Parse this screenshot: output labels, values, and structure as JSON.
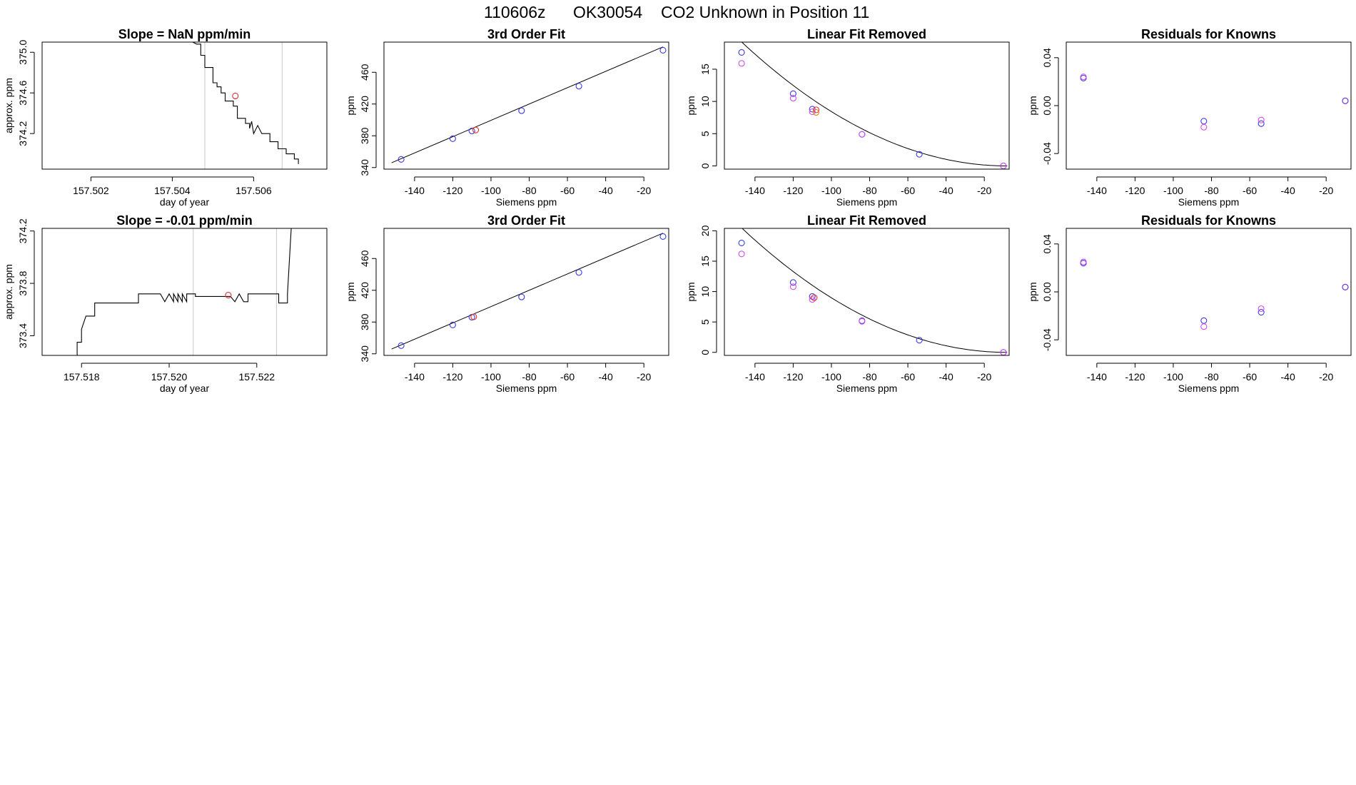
{
  "header": {
    "date": "110606z",
    "instrument": "OK30054",
    "description": "CO2 Unknown in Position  11"
  },
  "colors": {
    "blue": "#3a3ae0",
    "magenta": "#d54cf0",
    "red": "#e23030",
    "orange": "#e08a1e",
    "purple": "#7a3ae0",
    "ref_line": "#c8c8c8"
  },
  "chart_data": [
    {
      "id": "r0c0",
      "type": "line",
      "title": "Slope =  NaN  ppm/min",
      "xlabel": "day of year",
      "ylabel": "approx. ppm",
      "xlim": [
        157.5008,
        157.5078
      ],
      "ylim": [
        373.85,
        375.1
      ],
      "xticks": [
        157.502,
        157.504,
        157.506
      ],
      "xtick_labels": [
        "157.502",
        "157.504",
        "157.506"
      ],
      "yticks": [
        374.2,
        374.6,
        375.0
      ],
      "ytick_labels": [
        "374.2",
        "374.6",
        "375.0"
      ],
      "vlines": [
        157.5048,
        157.5067
      ],
      "trace": [
        [
          157.5045,
          375.1
        ],
        [
          157.5046,
          375.08
        ],
        [
          157.5047,
          375.08
        ],
        [
          157.5047,
          374.97
        ],
        [
          157.5048,
          374.97
        ],
        [
          157.5048,
          374.85
        ],
        [
          157.505,
          374.85
        ],
        [
          157.505,
          374.7
        ],
        [
          157.5051,
          374.7
        ],
        [
          157.5051,
          374.66
        ],
        [
          157.5052,
          374.66
        ],
        [
          157.5052,
          374.6
        ],
        [
          157.5053,
          374.6
        ],
        [
          157.5053,
          374.52
        ],
        [
          157.5055,
          374.52
        ],
        [
          157.5055,
          374.47
        ],
        [
          157.5056,
          374.47
        ],
        [
          157.5056,
          374.35
        ],
        [
          157.5058,
          374.35
        ],
        [
          157.5058,
          374.3
        ],
        [
          157.5059,
          374.3
        ],
        [
          157.5059,
          374.25
        ],
        [
          157.50595,
          374.32
        ],
        [
          157.506,
          374.2
        ],
        [
          157.5061,
          374.28
        ],
        [
          157.5062,
          374.2
        ],
        [
          157.5062,
          374.2
        ],
        [
          157.5064,
          374.2
        ],
        [
          157.5064,
          374.12
        ],
        [
          157.5066,
          374.12
        ],
        [
          157.5066,
          374.05
        ],
        [
          157.5068,
          374.05
        ],
        [
          157.5068,
          374.0
        ],
        [
          157.507,
          374.0
        ],
        [
          157.507,
          373.95
        ],
        [
          157.5071,
          373.95
        ],
        [
          157.5071,
          373.9
        ]
      ],
      "points": [
        {
          "x": 157.50555,
          "y": 374.57,
          "color": "red"
        }
      ]
    },
    {
      "id": "r0c1",
      "type": "scatter",
      "title": "3rd Order Fit",
      "xlabel": "Siemens ppm",
      "ylabel": "ppm",
      "xlim": [
        -156,
        -7
      ],
      "ylim": [
        338,
        498
      ],
      "xticks": [
        -140,
        -120,
        -100,
        -80,
        -60,
        -40,
        -20
      ],
      "xtick_labels": [
        "-140",
        "-120",
        "-100",
        "-80",
        "-60",
        "-40",
        "-20"
      ],
      "yticks": [
        340,
        380,
        420,
        460
      ],
      "ytick_labels": [
        "340",
        "380",
        "420",
        "460"
      ],
      "line": [
        [
          -152,
          346.0
        ],
        [
          -10,
          492.0
        ]
      ],
      "points": [
        {
          "x": -147,
          "y": 350.3,
          "color": "blue"
        },
        {
          "x": -120,
          "y": 376.4,
          "color": "blue"
        },
        {
          "x": -110,
          "y": 386.1,
          "color": "blue"
        },
        {
          "x": -108,
          "y": 387.3,
          "color": "red"
        },
        {
          "x": -84,
          "y": 411.6,
          "color": "blue"
        },
        {
          "x": -54,
          "y": 442.5,
          "color": "blue"
        },
        {
          "x": -10,
          "y": 487.7,
          "color": "blue"
        }
      ]
    },
    {
      "id": "r0c2",
      "type": "scatter",
      "title": "Linear Fit Removed",
      "xlabel": "Siemens ppm",
      "ylabel": "ppm",
      "xlim": [
        -156,
        -7
      ],
      "ylim": [
        -0.5,
        19.2
      ],
      "xticks": [
        -140,
        -120,
        -100,
        -80,
        -60,
        -40,
        -20
      ],
      "xtick_labels": [
        "-140",
        "-120",
        "-100",
        "-80",
        "-60",
        "-40",
        "-20"
      ],
      "yticks": [
        0,
        5,
        10,
        15
      ],
      "ytick_labels": [
        "0",
        "5",
        "10",
        "15"
      ],
      "curve": {
        "x0": -8,
        "a": 0.000995,
        "xmin": -152,
        "xmax": -8
      },
      "points": [
        {
          "x": -147,
          "y": 17.6,
          "color": "blue"
        },
        {
          "x": -147,
          "y": 15.9,
          "color": "magenta"
        },
        {
          "x": -120,
          "y": 11.2,
          "color": "blue"
        },
        {
          "x": -120,
          "y": 10.5,
          "color": "magenta"
        },
        {
          "x": -110,
          "y": 8.8,
          "color": "blue"
        },
        {
          "x": -110,
          "y": 8.4,
          "color": "magenta"
        },
        {
          "x": -108,
          "y": 8.7,
          "color": "red"
        },
        {
          "x": -108,
          "y": 8.3,
          "color": "orange"
        },
        {
          "x": -84,
          "y": 4.9,
          "color": "blue"
        },
        {
          "x": -84,
          "y": 4.9,
          "color": "magenta"
        },
        {
          "x": -54,
          "y": 1.8,
          "color": "blue"
        },
        {
          "x": -10,
          "y": 0.0,
          "color": "blue"
        },
        {
          "x": -10,
          "y": 0.0,
          "color": "magenta"
        }
      ]
    },
    {
      "id": "r0c3",
      "type": "scatter",
      "title": "Residuals for Knowns",
      "xlabel": "Siemens ppm",
      "ylabel": "ppm",
      "xlim": [
        -156,
        -7
      ],
      "ylim": [
        -0.053,
        0.053
      ],
      "xticks": [
        -140,
        -120,
        -100,
        -80,
        -60,
        -40,
        -20
      ],
      "xtick_labels": [
        "-140",
        "-120",
        "-100",
        "-80",
        "-60",
        "-40",
        "-20"
      ],
      "yticks": [
        -0.04,
        0.0,
        0.04
      ],
      "ytick_labels": [
        "-0.04",
        "0.00",
        "0.04"
      ],
      "points": [
        {
          "x": -147,
          "y": 0.023,
          "color": "blue"
        },
        {
          "x": -147,
          "y": 0.024,
          "color": "magenta"
        },
        {
          "x": -84,
          "y": -0.013,
          "color": "blue"
        },
        {
          "x": -84,
          "y": -0.018,
          "color": "magenta"
        },
        {
          "x": -54,
          "y": -0.015,
          "color": "blue"
        },
        {
          "x": -54,
          "y": -0.012,
          "color": "magenta"
        },
        {
          "x": -10,
          "y": 0.004,
          "color": "blue"
        },
        {
          "x": -10,
          "y": 0.004,
          "color": "purple"
        }
      ]
    },
    {
      "id": "r1c0",
      "type": "line",
      "title": "Slope =  -0.01  ppm/min",
      "xlabel": "day of year",
      "ylabel": "approx. ppm",
      "xlim": [
        157.5171,
        157.5236
      ],
      "ylim": [
        373.25,
        374.22
      ],
      "xticks": [
        157.518,
        157.52,
        157.522
      ],
      "xtick_labels": [
        "157.518",
        "157.520",
        "157.522"
      ],
      "yticks": [
        373.4,
        373.8,
        374.2
      ],
      "ytick_labels": [
        "373.4",
        "373.8",
        "374.2"
      ],
      "vlines": [
        157.52055,
        157.52245
      ],
      "trace": [
        [
          157.5179,
          373.25
        ],
        [
          157.5179,
          373.35
        ],
        [
          157.518,
          373.35
        ],
        [
          157.518,
          373.45
        ],
        [
          157.5181,
          373.55
        ],
        [
          157.5183,
          373.55
        ],
        [
          157.5183,
          373.65
        ],
        [
          157.5193,
          373.65
        ],
        [
          157.5193,
          373.72
        ],
        [
          157.5198,
          373.72
        ],
        [
          157.5199,
          373.66
        ],
        [
          157.52,
          373.72
        ],
        [
          157.5201,
          373.66
        ],
        [
          157.5201,
          373.72
        ],
        [
          157.5202,
          373.66
        ],
        [
          157.5202,
          373.72
        ],
        [
          157.5203,
          373.66
        ],
        [
          157.5203,
          373.72
        ],
        [
          157.5204,
          373.66
        ],
        [
          157.5204,
          373.72
        ],
        [
          157.5206,
          373.72
        ],
        [
          157.5206,
          373.7
        ],
        [
          157.5214,
          373.7
        ],
        [
          157.5215,
          373.66
        ],
        [
          157.5216,
          373.72
        ],
        [
          157.5217,
          373.66
        ],
        [
          157.5218,
          373.66
        ],
        [
          157.5218,
          373.72
        ],
        [
          157.5225,
          373.72
        ],
        [
          157.5225,
          373.65
        ],
        [
          157.5227,
          373.65
        ],
        [
          157.5227,
          373.72
        ],
        [
          157.5228,
          374.3
        ]
      ],
      "points": [
        {
          "x": 157.52135,
          "y": 373.71,
          "color": "red"
        }
      ]
    },
    {
      "id": "r1c1",
      "type": "scatter",
      "title": "3rd Order Fit",
      "xlabel": "Siemens ppm",
      "ylabel": "ppm",
      "xlim": [
        -156,
        -7
      ],
      "ylim": [
        338,
        498
      ],
      "xticks": [
        -140,
        -120,
        -100,
        -80,
        -60,
        -40,
        -20
      ],
      "xtick_labels": [
        "-140",
        "-120",
        "-100",
        "-80",
        "-60",
        "-40",
        "-20"
      ],
      "yticks": [
        340,
        380,
        420,
        460
      ],
      "ytick_labels": [
        "340",
        "380",
        "420",
        "460"
      ],
      "line": [
        [
          -152,
          346.0
        ],
        [
          -10,
          492.0
        ]
      ],
      "points": [
        {
          "x": -147,
          "y": 350.3,
          "color": "blue"
        },
        {
          "x": -120,
          "y": 376.4,
          "color": "blue"
        },
        {
          "x": -110,
          "y": 386.1,
          "color": "blue"
        },
        {
          "x": -109,
          "y": 386.6,
          "color": "red"
        },
        {
          "x": -84,
          "y": 411.6,
          "color": "blue"
        },
        {
          "x": -54,
          "y": 442.5,
          "color": "blue"
        },
        {
          "x": -10,
          "y": 487.7,
          "color": "blue"
        }
      ]
    },
    {
      "id": "r1c2",
      "type": "scatter",
      "title": "Linear Fit Removed",
      "xlabel": "Siemens ppm",
      "ylabel": "ppm",
      "xlim": [
        -156,
        -7
      ],
      "ylim": [
        -0.5,
        20.4
      ],
      "xticks": [
        -140,
        -120,
        -100,
        -80,
        -60,
        -40,
        -20
      ],
      "xtick_labels": [
        "-140",
        "-120",
        "-100",
        "-80",
        "-60",
        "-40",
        "-20"
      ],
      "yticks": [
        0,
        5,
        10,
        15,
        20
      ],
      "ytick_labels": [
        "0",
        "5",
        "10",
        "15",
        "20"
      ],
      "curve": {
        "x0": -8,
        "a": 0.00106,
        "xmin": -152,
        "xmax": -8
      },
      "points": [
        {
          "x": -147,
          "y": 18.0,
          "color": "blue"
        },
        {
          "x": -147,
          "y": 16.2,
          "color": "magenta"
        },
        {
          "x": -120,
          "y": 11.5,
          "color": "blue"
        },
        {
          "x": -120,
          "y": 10.8,
          "color": "magenta"
        },
        {
          "x": -110,
          "y": 9.2,
          "color": "blue"
        },
        {
          "x": -110,
          "y": 8.7,
          "color": "magenta"
        },
        {
          "x": -109,
          "y": 9.0,
          "color": "red"
        },
        {
          "x": -84,
          "y": 5.2,
          "color": "blue"
        },
        {
          "x": -84,
          "y": 5.1,
          "color": "magenta"
        },
        {
          "x": -54,
          "y": 2.0,
          "color": "blue"
        },
        {
          "x": -10,
          "y": 0.0,
          "color": "blue"
        },
        {
          "x": -10,
          "y": 0.0,
          "color": "magenta"
        }
      ]
    },
    {
      "id": "r1c3",
      "type": "scatter",
      "title": "Residuals for Knowns",
      "xlabel": "Siemens ppm",
      "ylabel": "ppm",
      "xlim": [
        -156,
        -7
      ],
      "ylim": [
        -0.053,
        0.053
      ],
      "xticks": [
        -140,
        -120,
        -100,
        -80,
        -60,
        -40,
        -20
      ],
      "xtick_labels": [
        "-140",
        "-120",
        "-100",
        "-80",
        "-60",
        "-40",
        "-20"
      ],
      "yticks": [
        -0.04,
        0.0,
        0.04
      ],
      "ytick_labels": [
        "-0.04",
        "0.00",
        "0.04"
      ],
      "points": [
        {
          "x": -147,
          "y": 0.024,
          "color": "blue"
        },
        {
          "x": -147,
          "y": 0.025,
          "color": "magenta"
        },
        {
          "x": -84,
          "y": -0.024,
          "color": "blue"
        },
        {
          "x": -84,
          "y": -0.029,
          "color": "magenta"
        },
        {
          "x": -54,
          "y": -0.017,
          "color": "blue"
        },
        {
          "x": -54,
          "y": -0.014,
          "color": "magenta"
        },
        {
          "x": -10,
          "y": 0.004,
          "color": "blue"
        },
        {
          "x": -10,
          "y": 0.004,
          "color": "purple"
        }
      ]
    }
  ]
}
